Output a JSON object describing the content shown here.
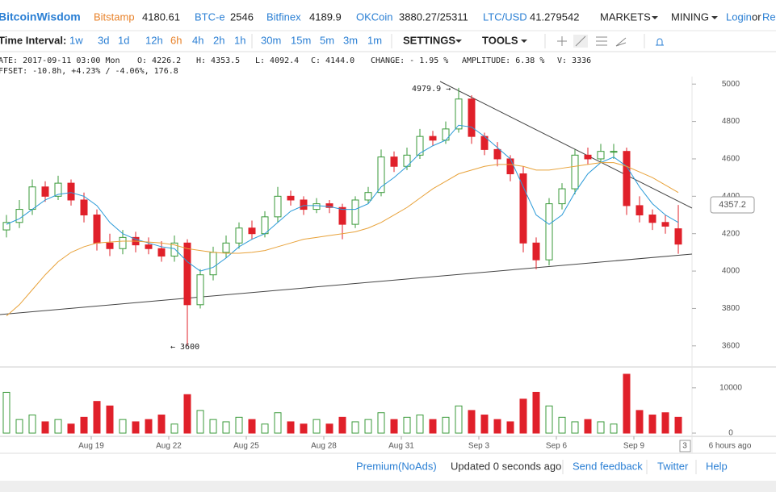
{
  "header": {
    "logo": "BitcoinWisdom",
    "tickers": [
      {
        "name": "Bitstamp",
        "price": "4180.61"
      },
      {
        "name": "BTC-e",
        "price": "2546"
      },
      {
        "name": "Bitfinex",
        "price": "4189.9"
      },
      {
        "name": "OKCoin",
        "price": "3880.27/25311"
      },
      {
        "name": "LTC/USD",
        "price": "41.279542"
      }
    ],
    "menus": [
      "MARKETS",
      "MINING"
    ],
    "login": "Login",
    "or": "or",
    "register": "Re"
  },
  "toolbar": {
    "label": "Time Interval:",
    "intervals": [
      "1w",
      "3d",
      "1d",
      "12h",
      "6h",
      "4h",
      "2h",
      "1h",
      "30m",
      "15m",
      "5m",
      "3m",
      "1m"
    ],
    "settings": "SETTINGS",
    "tools": "TOOLS"
  },
  "info": {
    "line1": [
      "ATE: 2017-09-11 03:00 Mon",
      "O: 4226.2",
      "H: 4353.5",
      "L: 4092.4",
      "C: 4144.0",
      "CHANGE: - 1.95 %",
      "AMPLITUDE: 6.38 %",
      "V: 3336"
    ],
    "line2": "FFSET: -10.8h, +4.23% / -4.06%, 176.8"
  },
  "chart_data": {
    "type": "candlestick",
    "up_color": "#3a9a3a",
    "down_color": "#e0202a",
    "open": [
      4220,
      4260,
      4330,
      4450,
      4400,
      4470,
      4380,
      4300,
      4150,
      4120,
      4180,
      4140,
      4120,
      4080,
      4150,
      3820,
      3980,
      4100,
      4150,
      4230,
      4200,
      4290,
      4400,
      4380,
      4330,
      4360,
      4340,
      4250,
      4380,
      4420,
      4610,
      4560,
      4620,
      4720,
      4700,
      4760,
      4920,
      4720,
      4650,
      4600,
      4520,
      4150,
      4060,
      4360,
      4440,
      4620,
      4600,
      4640,
      4640,
      4350,
      4300,
      4260,
      4226.2
    ],
    "high": [
      4300,
      4380,
      4490,
      4480,
      4510,
      4490,
      4420,
      4330,
      4200,
      4220,
      4210,
      4180,
      4160,
      4190,
      4170,
      4010,
      4130,
      4190,
      4260,
      4270,
      4320,
      4450,
      4430,
      4400,
      4390,
      4380,
      4360,
      4400,
      4450,
      4650,
      4640,
      4660,
      4760,
      4750,
      4800,
      4979.9,
      4940,
      4740,
      4690,
      4620,
      4560,
      4180,
      4390,
      4470,
      4650,
      4660,
      4680,
      4680,
      4660,
      4400,
      4330,
      4300,
      4353.5
    ],
    "low": [
      4180,
      4230,
      4300,
      4370,
      4380,
      4350,
      4260,
      4110,
      4080,
      4090,
      4100,
      4090,
      4050,
      4050,
      3600,
      3800,
      3950,
      4070,
      4120,
      4170,
      4180,
      4260,
      4350,
      4300,
      4310,
      4310,
      4170,
      4230,
      4360,
      4400,
      4530,
      4540,
      4600,
      4670,
      4680,
      4740,
      4680,
      4620,
      4560,
      4480,
      4100,
      4010,
      4030,
      4330,
      4410,
      4570,
      4580,
      4600,
      4300,
      4260,
      4220,
      4200,
      4092.4
    ],
    "close": [
      4260,
      4330,
      4450,
      4400,
      4470,
      4380,
      4300,
      4150,
      4120,
      4180,
      4140,
      4120,
      4080,
      4150,
      3820,
      3980,
      4100,
      4150,
      4230,
      4200,
      4290,
      4400,
      4380,
      4330,
      4360,
      4340,
      4250,
      4380,
      4420,
      4610,
      4560,
      4620,
      4720,
      4700,
      4760,
      4920,
      4720,
      4650,
      4600,
      4520,
      4150,
      4060,
      4360,
      4440,
      4620,
      4600,
      4640,
      4640,
      4350,
      4300,
      4260,
      4240,
      4144
    ],
    "volume": [
      9000,
      3000,
      4000,
      2500,
      3000,
      2000,
      3500,
      7000,
      6000,
      3000,
      2500,
      3000,
      4000,
      2000,
      8500,
      5000,
      3000,
      2500,
      3500,
      3000,
      2000,
      4500,
      2500,
      2000,
      3000,
      2000,
      3500,
      2500,
      3000,
      4500,
      3000,
      3500,
      4000,
      3000,
      3500,
      6000,
      5000,
      4000,
      3000,
      2500,
      7500,
      9000,
      6000,
      3500,
      2500,
      3000,
      2500,
      2000,
      13000,
      5000,
      4000,
      4500,
      3500
    ],
    "moving_averages": [
      {
        "color": "#2a9ad8",
        "values": [
          4250,
          4280,
          4330,
          4380,
          4410,
          4420,
          4400,
          4350,
          4260,
          4200,
          4170,
          4150,
          4130,
          4120,
          4050,
          4000,
          4020,
          4070,
          4130,
          4170,
          4200,
          4260,
          4320,
          4350,
          4350,
          4345,
          4330,
          4330,
          4360,
          4450,
          4500,
          4560,
          4630,
          4670,
          4700,
          4780,
          4770,
          4720,
          4660,
          4600,
          4450,
          4300,
          4250,
          4300,
          4420,
          4520,
          4580,
          4610,
          4560,
          4450,
          4360,
          4300,
          4260
        ]
      },
      {
        "color": "#e8a23a",
        "values": [
          3760,
          3820,
          3900,
          3980,
          4050,
          4100,
          4130,
          4150,
          4155,
          4160,
          4160,
          4155,
          4150,
          4140,
          4120,
          4110,
          4100,
          4095,
          4095,
          4100,
          4110,
          4130,
          4150,
          4170,
          4180,
          4190,
          4200,
          4210,
          4230,
          4260,
          4300,
          4340,
          4390,
          4440,
          4480,
          4520,
          4540,
          4560,
          4570,
          4570,
          4560,
          4540,
          4540,
          4550,
          4560,
          4570,
          4580,
          4580,
          4560,
          4530,
          4500,
          4460,
          4420
        ]
      }
    ],
    "ylim": [
      3500,
      5070
    ],
    "yticks": [
      3600,
      3800,
      4000,
      4200,
      4400,
      4600,
      4800,
      5000
    ],
    "volume_ylim": [
      0,
      14600
    ],
    "volume_yticks": [
      0,
      10000
    ],
    "xtick_labels": [
      "Aug 19",
      "Aug 22",
      "Aug 25",
      "Aug 28",
      "Aug 31",
      "Sep 3",
      "Sep 6",
      "Sep 9"
    ],
    "cursor_label": "3",
    "time_ago": "6 hours ago",
    "annotations": {
      "high": "4979.9 →",
      "low": "← 3600",
      "last_price": "4357.2"
    }
  },
  "footer": [
    "Premium(NoAds)",
    "Updated 0 seconds ago",
    "Send feedback",
    "Twitter",
    "Help"
  ]
}
